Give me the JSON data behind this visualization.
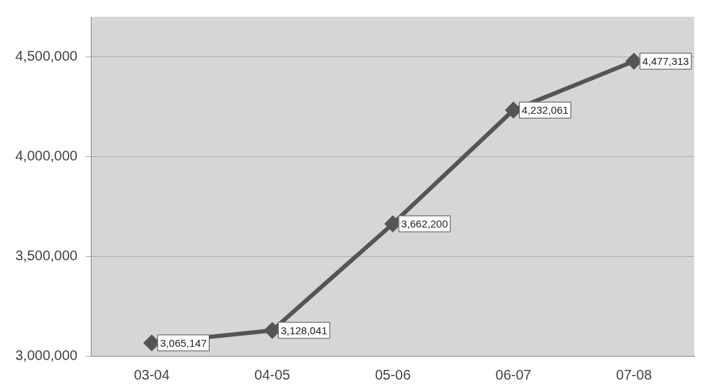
{
  "chart_data": {
    "type": "line",
    "categories": [
      "03-04",
      "04-05",
      "05-06",
      "06-07",
      "07-08"
    ],
    "series": [
      {
        "color": "#555555",
        "values": [
          3065147,
          3128041,
          3662200,
          4232061,
          4477313
        ],
        "value_labels": [
          "3,065,147",
          "3,128,041",
          "3,662,200",
          "4,232,061",
          "4,477,313"
        ]
      }
    ],
    "ylim": [
      3000000,
      4700000
    ],
    "yticks": [
      {
        "value": 3000000,
        "label": "3,000,000"
      },
      {
        "value": 3500000,
        "label": "3,500,000"
      },
      {
        "value": 4000000,
        "label": "4,000,000"
      },
      {
        "value": 4500000,
        "label": "4,500,000"
      }
    ],
    "grid": "y",
    "legend": false,
    "marker": "diamond",
    "line_style": "solid"
  }
}
